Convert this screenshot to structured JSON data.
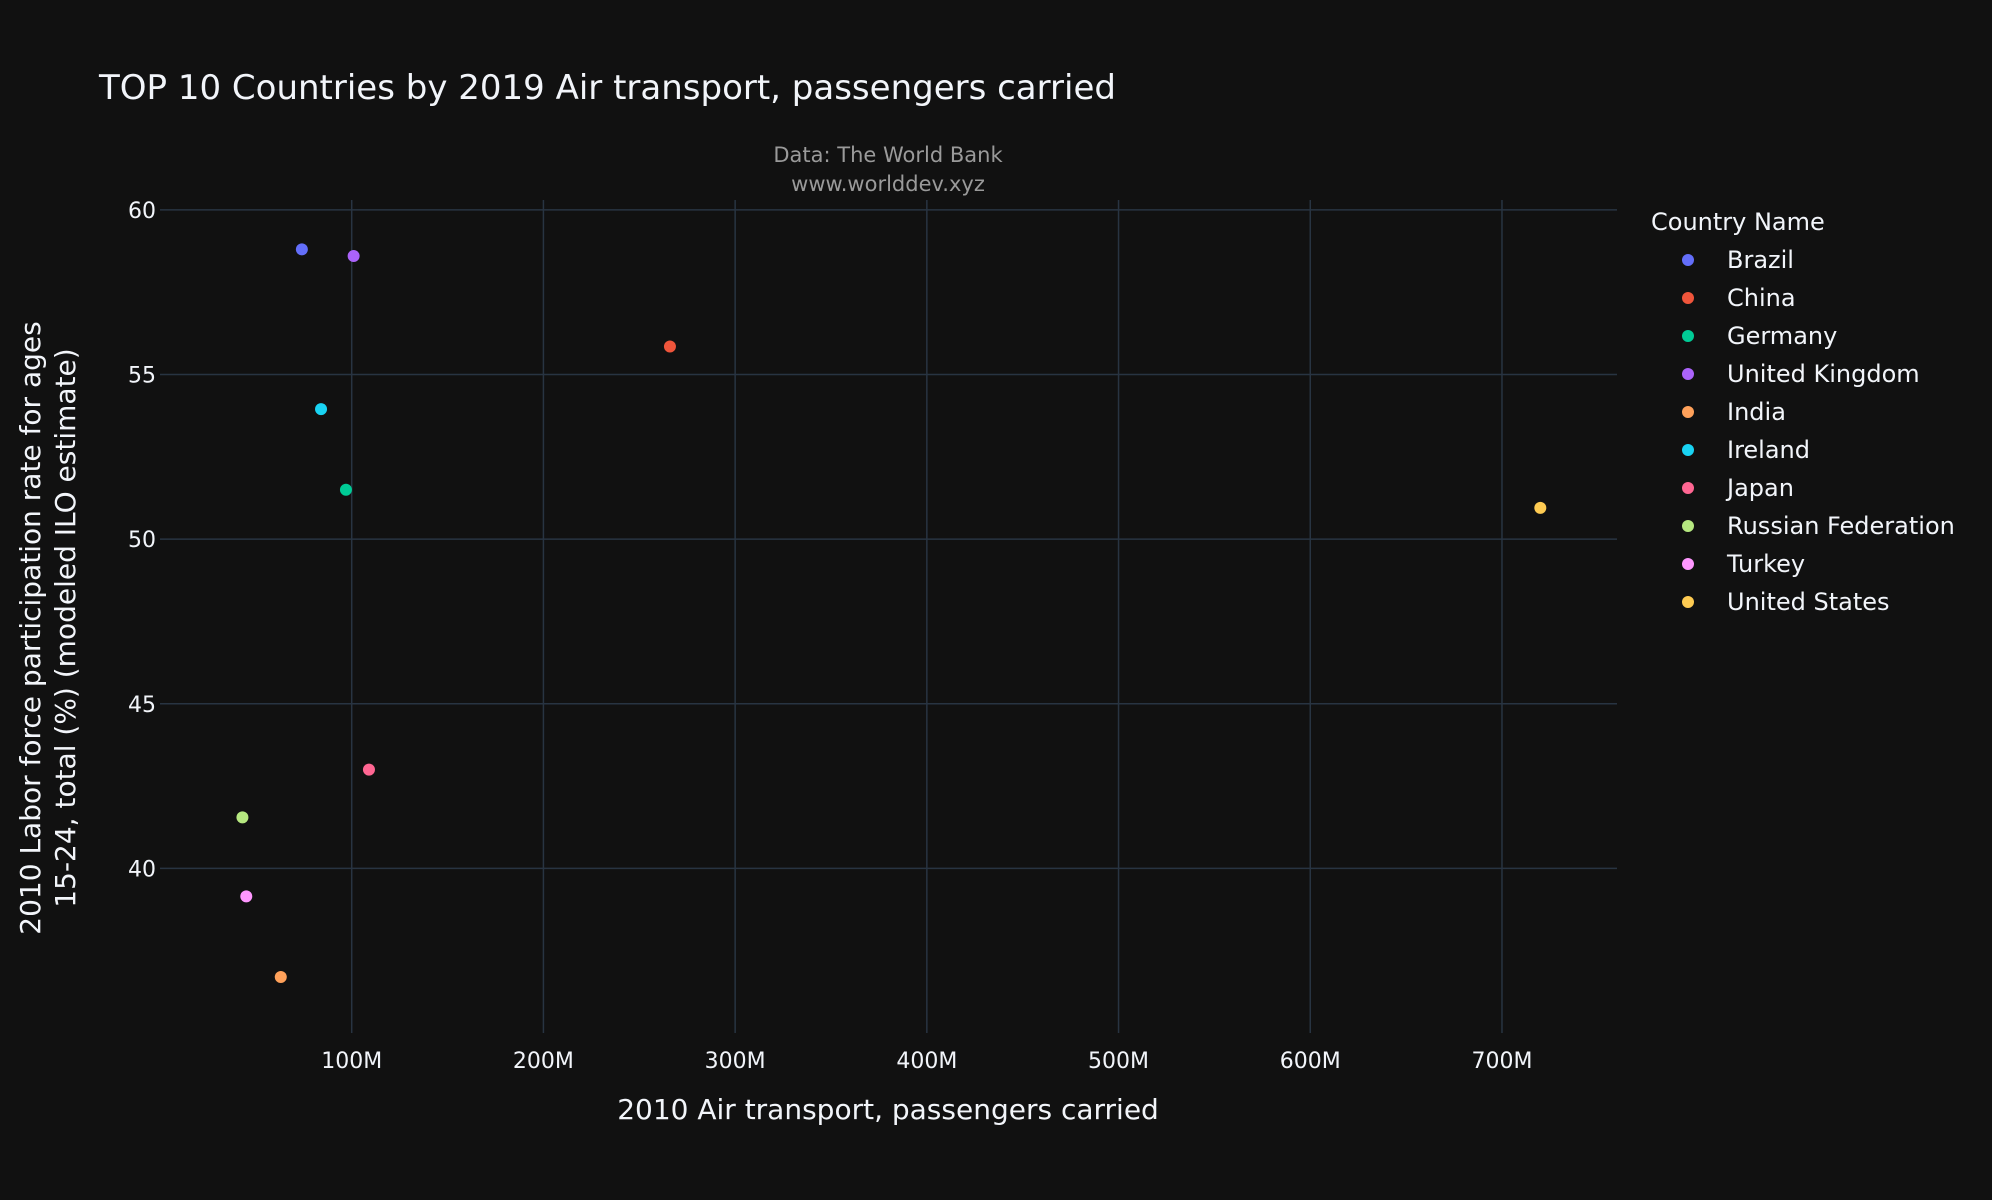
{
  "chart_data": {
    "type": "scatter",
    "title": "TOP 10 Countries by 2019 Air transport, passengers carried",
    "source_lines": [
      "Data: The World Bank",
      "www.worlddev.xyz"
    ],
    "xlabel": "2010 Air transport, passengers carried",
    "ylabel_lines": [
      "2010 Labor force participation rate for ages",
      "15-24, total (%) (modeled ILO estimate)"
    ],
    "xlim": [
      0,
      760000000
    ],
    "ylim": [
      35,
      60.3
    ],
    "xticks": [
      {
        "value": 100000000,
        "label": "100M"
      },
      {
        "value": 200000000,
        "label": "200M"
      },
      {
        "value": 300000000,
        "label": "300M"
      },
      {
        "value": 400000000,
        "label": "400M"
      },
      {
        "value": 500000000,
        "label": "500M"
      },
      {
        "value": 600000000,
        "label": "600M"
      },
      {
        "value": 700000000,
        "label": "700M"
      }
    ],
    "yticks": [
      {
        "value": 40,
        "label": "40"
      },
      {
        "value": 45,
        "label": "45"
      },
      {
        "value": 50,
        "label": "50"
      },
      {
        "value": 55,
        "label": "55"
      },
      {
        "value": 60,
        "label": "60"
      }
    ],
    "grid": true,
    "legend_title": "Country Name",
    "legend_position": "right",
    "series": [
      {
        "name": "Brazil",
        "color": "#636efa",
        "x": 74000000,
        "y": 58.8
      },
      {
        "name": "China",
        "color": "#ef553b",
        "x": 266000000,
        "y": 55.85
      },
      {
        "name": "Germany",
        "color": "#00cc96",
        "x": 97000000,
        "y": 51.5
      },
      {
        "name": "United Kingdom",
        "color": "#ab63fa",
        "x": 101000000,
        "y": 58.6
      },
      {
        "name": "India",
        "color": "#ffa15a",
        "x": 63000000,
        "y": 36.7
      },
      {
        "name": "Ireland",
        "color": "#19d3f3",
        "x": 84000000,
        "y": 53.95
      },
      {
        "name": "Japan",
        "color": "#ff6692",
        "x": 109000000,
        "y": 43.0
      },
      {
        "name": "Russian Federation",
        "color": "#b6e880",
        "x": 43000000,
        "y": 41.55
      },
      {
        "name": "Turkey",
        "color": "#ff97ff",
        "x": 45000000,
        "y": 39.15
      },
      {
        "name": "United States",
        "color": "#fecb52",
        "x": 720000000,
        "y": 50.95
      }
    ]
  }
}
